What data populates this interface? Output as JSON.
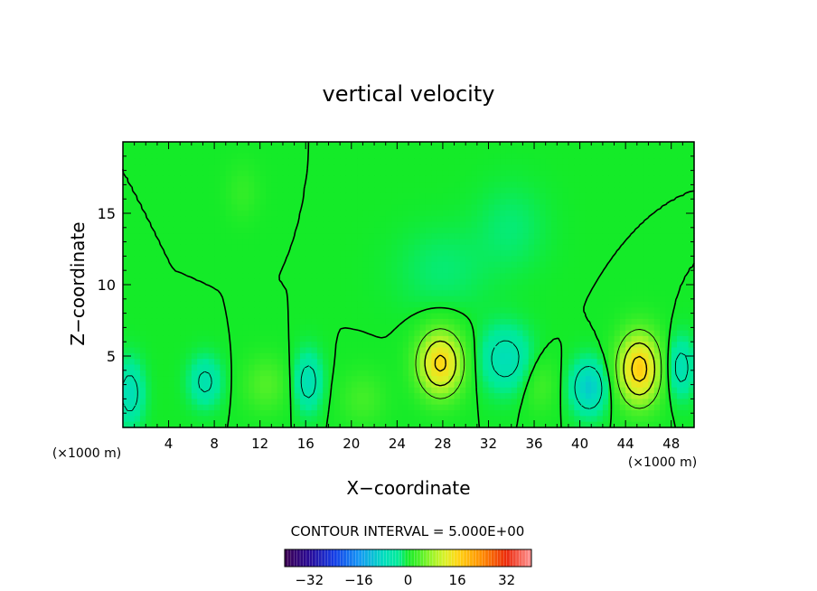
{
  "chart_data": {
    "type": "heatmap",
    "title": "vertical velocity",
    "xlabel": "X−coordinate",
    "ylabel": "Z−coordinate",
    "x_unit": "(×1000 m)",
    "z_unit": "(×1000 m)",
    "xlim": [
      0,
      50
    ],
    "ylim": [
      0,
      20
    ],
    "x_ticks": [
      4,
      8,
      12,
      16,
      20,
      24,
      28,
      32,
      36,
      40,
      44,
      48
    ],
    "x_tick_labels": [
      "4",
      "8",
      "12",
      "16",
      "20",
      "24",
      "28",
      "32",
      "36",
      "40",
      "44",
      "48"
    ],
    "y_ticks": [
      5,
      10,
      15
    ],
    "y_tick_labels": [
      "5",
      "10",
      "15"
    ],
    "contour_interval_text": "CONTOUR INTERVAL = 5.000E+00",
    "contour_interval": 5,
    "colorbar": {
      "range": [
        -40,
        40
      ],
      "tick_values": [
        -32,
        -16,
        0,
        16,
        32
      ],
      "tick_labels": [
        "−32",
        "−16",
        "0",
        "16",
        "32"
      ]
    },
    "background_value": 0,
    "features": [
      {
        "x": 27.8,
        "z": 4.5,
        "amplitude": 16,
        "sx": 2.0,
        "sz": 2.3
      },
      {
        "x": 45.2,
        "z": 4.1,
        "amplitude": 17,
        "sx": 1.9,
        "sz": 2.5
      },
      {
        "x": 40.8,
        "z": 2.8,
        "amplitude": -10,
        "sx": 1.5,
        "sz": 1.8
      },
      {
        "x": 33.5,
        "z": 4.8,
        "amplitude": -7,
        "sx": 2.2,
        "sz": 2.2
      },
      {
        "x": 48.8,
        "z": 4.2,
        "amplitude": -7,
        "sx": 1.2,
        "sz": 2.0
      },
      {
        "x": 16.2,
        "z": 3.2,
        "amplitude": -7,
        "sx": 1.2,
        "sz": 2.0
      },
      {
        "x": 7.2,
        "z": 3.2,
        "amplitude": -6,
        "sx": 1.4,
        "sz": 1.7
      },
      {
        "x": 0.6,
        "z": 2.4,
        "amplitude": -7,
        "sx": 1.2,
        "sz": 2.2
      },
      {
        "x": 12.5,
        "z": 3.0,
        "amplitude": 4,
        "sx": 2.0,
        "sz": 2.0
      },
      {
        "x": 21.0,
        "z": 2.0,
        "amplitude": 3,
        "sx": 2.0,
        "sz": 2.0
      },
      {
        "x": 36.5,
        "z": 3.0,
        "amplitude": 3,
        "sx": 1.5,
        "sz": 2.0
      },
      {
        "x": 28.0,
        "z": 11.0,
        "amplitude": -2,
        "sx": 4.0,
        "sz": 3.0
      },
      {
        "x": 34.0,
        "z": 14.0,
        "amplitude": -2,
        "sx": 3.0,
        "sz": 3.0
      },
      {
        "x": 10.5,
        "z": 16.5,
        "amplitude": 2,
        "sx": 1.5,
        "sz": 2.0
      }
    ]
  }
}
